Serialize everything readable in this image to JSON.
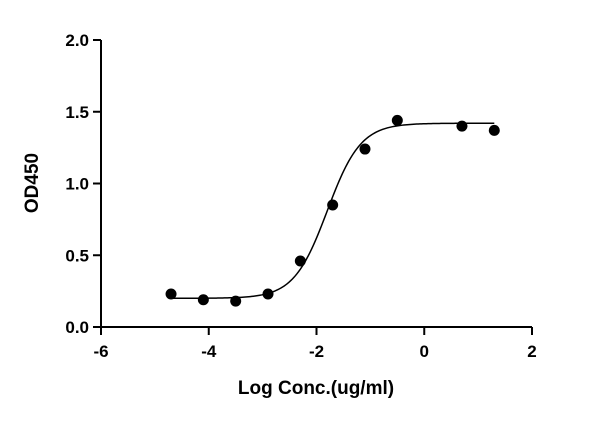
{
  "chart_data": {
    "type": "scatter",
    "title": "",
    "xlabel": "Log Conc.(ug/ml)",
    "ylabel": "OD450",
    "xlim": [
      -6,
      2
    ],
    "ylim": [
      0,
      2
    ],
    "x_ticks": [
      -6,
      -4,
      -2,
      0,
      2
    ],
    "x_tick_labels": [
      "-6",
      "-4",
      "-2",
      "0",
      "2"
    ],
    "y_ticks": [
      0,
      0.5,
      1,
      1.5,
      2
    ],
    "y_tick_labels": [
      "0.0",
      "0.5",
      "1.0",
      "1.5",
      "2.0"
    ],
    "grid": false,
    "legend": "none",
    "series": [
      {
        "x": [
          -4.7,
          -4.1,
          -3.5,
          -2.9,
          -2.3,
          -1.7,
          -1.1,
          -0.5,
          0.7,
          1.3
        ],
        "y": [
          0.23,
          0.19,
          0.18,
          0.23,
          0.46,
          0.85,
          1.24,
          1.44,
          1.4,
          1.37
        ],
        "marker": "circle",
        "color": "#000000"
      }
    ],
    "fit": {
      "type": "4PL sigmoid",
      "bottom": 0.2,
      "top": 1.42,
      "log_ec50": -1.8,
      "hill_slope": 1.4,
      "color": "#000000"
    }
  }
}
